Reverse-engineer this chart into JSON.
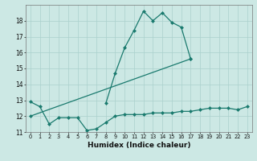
{
  "xlabel": "Humidex (Indice chaleur)",
  "background_color": "#cce8e4",
  "grid_color": "#aad0cc",
  "line_color": "#1a7a6e",
  "xlim": [
    -0.5,
    23.5
  ],
  "ylim": [
    11,
    19
  ],
  "yticks": [
    11,
    12,
    13,
    14,
    15,
    16,
    17,
    18
  ],
  "xticks": [
    0,
    1,
    2,
    3,
    4,
    5,
    6,
    7,
    8,
    9,
    10,
    11,
    12,
    13,
    14,
    15,
    16,
    17,
    18,
    19,
    20,
    21,
    22,
    23
  ],
  "line1_x": [
    0,
    1,
    2,
    3,
    4,
    5,
    6,
    7,
    8,
    9,
    10,
    11,
    12,
    13,
    14,
    15,
    16,
    17,
    18,
    19,
    20,
    21,
    22,
    23
  ],
  "line1_y": [
    12.9,
    12.6,
    11.5,
    11.9,
    11.9,
    11.9,
    11.1,
    11.2,
    11.6,
    12.0,
    12.1,
    12.1,
    12.1,
    12.2,
    12.2,
    12.2,
    12.3,
    12.3,
    12.4,
    12.5,
    12.5,
    12.5,
    12.4,
    12.6
  ],
  "line2_x": [
    0,
    17
  ],
  "line2_y": [
    12.0,
    15.6
  ],
  "line3_x": [
    8,
    9,
    10,
    11,
    12,
    13,
    14,
    15,
    16,
    17
  ],
  "line3_y": [
    12.8,
    14.7,
    16.3,
    17.4,
    18.6,
    18.0,
    18.5,
    17.9,
    17.6,
    15.6
  ]
}
